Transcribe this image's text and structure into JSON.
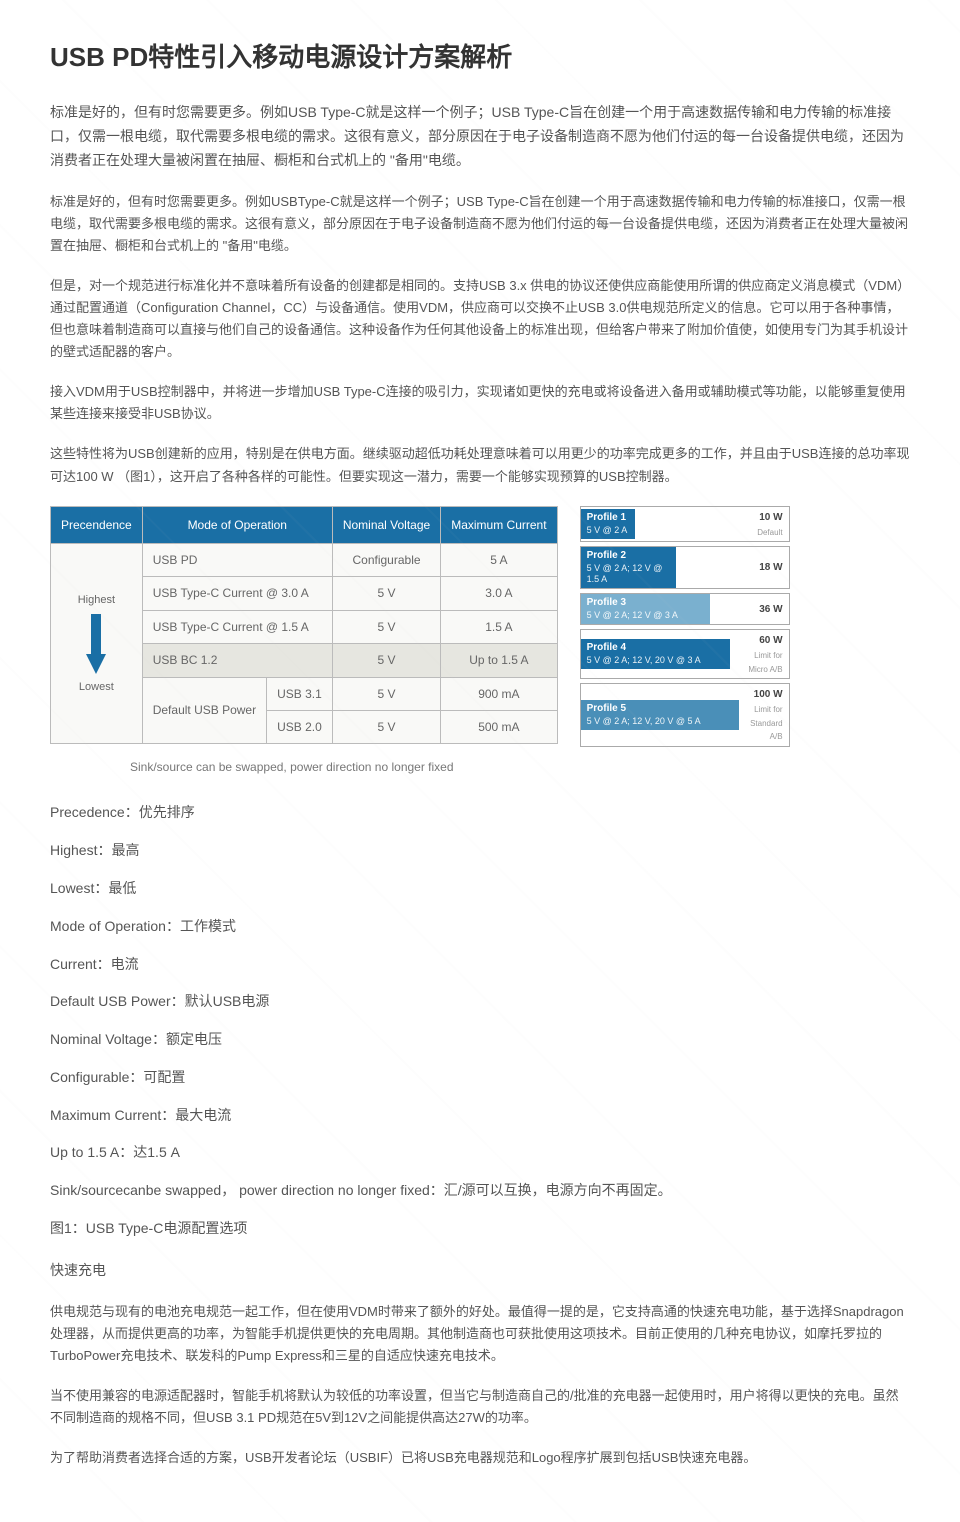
{
  "title": "USB PD特性引入移动电源设计方案解析",
  "paras": {
    "p1": "标准是好的，但有时您需要更多。例如USB Type-C就是这样一个例子；USB Type-C旨在创建一个用于高速数据传输和电力传输的标准接口，仅需一根电缆，取代需要多根电缆的需求。这很有意义，部分原因在于电子设备制造商不愿为他们付运的每一台设备提供电缆，还因为消费者正在处理大量被闲置在抽屉、橱柜和台式机上的 \"备用\"电缆。",
    "p2": "标准是好的，但有时您需要更多。例如USBType-C就是这样一个例子；USB Type-C旨在创建一个用于高速数据传输和电力传输的标准接口，仅需一根电缆，取代需要多根电缆的需求。这很有意义，部分原因在于电子设备制造商不愿为他们付运的每一台设备提供电缆，还因为消费者正在处理大量被闲置在抽屉、橱柜和台式机上的 \"备用\"电缆。",
    "p3": "但是，对一个规范进行标准化并不意味着所有设备的创建都是相同的。支持USB 3.x 供电的协议还使供应商能使用所谓的供应商定义消息模式（VDM）通过配置通道（Configuration Channel，CC）与设备通信。使用VDM，供应商可以交换不止USB 3.0供电规范所定义的信息。它可以用于各种事情，但也意味着制造商可以直接与他们自己的设备通信。这种设备作为任何其他设备上的标准出现，但给客户带来了附加价值使，如使用专门为其手机设计的壁式适配器的客户。",
    "p4": "接入VDM用于USB控制器中，并将进一步增加USB Type-C连接的吸引力，实现诸如更快的充电或将设备进入备用或辅助模式等功能，以能够重复使用某些连接来接受非USB协议。",
    "p5": "这些特性将为USB创建新的应用，特别是在供电方面。继续驱动超低功耗处理意味着可以用更少的功率完成更多的工作，并且由于USB连接的总功率现可达100 W （图1），这开启了各种各样的可能性。但要实现这一潜力，需要一个能够实现预算的USB控制器。"
  },
  "table": {
    "headers": {
      "precedence": "Precendence",
      "mode": "Mode of Operation",
      "voltage": "Nominal Voltage",
      "current": "Maximum Current"
    },
    "highest": "Highest",
    "lowest": "Lowest",
    "rows": {
      "r1": {
        "mode": "USB PD",
        "sub": "",
        "volt": "Configurable",
        "cur": "5 A"
      },
      "r2": {
        "mode": "USB Type-C Current @ 3.0 A",
        "sub": "",
        "volt": "5 V",
        "cur": "3.0 A"
      },
      "r3": {
        "mode": "USB Type-C Current @ 1.5 A",
        "sub": "",
        "volt": "5 V",
        "cur": "1.5 A"
      },
      "r4": {
        "mode": "USB BC 1.2",
        "sub": "",
        "volt": "5 V",
        "cur": "Up to 1.5 A"
      },
      "r5": {
        "mode": "Default USB Power",
        "sub": "USB 3.1",
        "volt": "5 V",
        "cur": "900 mA"
      },
      "r6": {
        "mode": "",
        "sub": "USB 2.0",
        "volt": "5 V",
        "cur": "500 mA"
      }
    }
  },
  "swap_note": "Sink/source can be swapped, power direction no longer fixed",
  "profiles": [
    {
      "name": "Profile 1",
      "spec": "5 V @ 2 A",
      "watt": "10 W",
      "note": "Default",
      "widthPct": 26,
      "bg": "#1a6fa5"
    },
    {
      "name": "Profile 2",
      "spec": "5 V @ 2 A; 12 V @ 1.5 A",
      "watt": "18 W",
      "note": "",
      "widthPct": 46,
      "bg": "#1a6fa5"
    },
    {
      "name": "Profile 3",
      "spec": "5 V @ 2 A; 12 V @ 3 A",
      "watt": "36 W",
      "note": "",
      "widthPct": 62,
      "bg": "#7ab0cf"
    },
    {
      "name": "Profile 4",
      "spec": "5 V @ 2 A; 12 V, 20 V @ 3 A",
      "watt": "60 W",
      "note": "Limit for Micro A/B",
      "widthPct": 72,
      "bg": "#1a6fa5"
    },
    {
      "name": "Profile 5",
      "spec": "5 V @ 2 A; 12 V, 20 V @ 5 A",
      "watt": "100 W",
      "note": "Limit for Standard A/B",
      "widthPct": 76,
      "bg": "#4a8fb8"
    }
  ],
  "defs": {
    "d1": "Precedence：优先排序",
    "d2": "Highest：最高",
    "d3": "Lowest：最低",
    "d4": "Mode of Operation：工作模式",
    "d5": "Current：电流",
    "d6": "Default USB Power：默认USB电源",
    "d7": "Nominal Voltage：额定电压",
    "d8": "Configurable：可配置",
    "d9": "Maximum Current：最大电流",
    "d10": "Up to 1.5 A：达1.5 A",
    "d11": "Sink/sourcecanbe swapped， power direction no longer fixed：汇/源可以互换，电源方向不再固定。"
  },
  "caption": "图1：USB Type-C电源配置选项",
  "section2_title": "快速充电",
  "paras2": {
    "p1": "供电规范与现有的电池充电规范一起工作，但在使用VDM时带来了额外的好处。最值得一提的是，它支持高通的快速充电功能，基于选择Snapdragon处理器，从而提供更高的功率，为智能手机提供更快的充电周期。其他制造商也可获批使用这项技术。目前正使用的几种充电协议，如摩托罗拉的TurboPower充电技术、联发科的Pump Express和三星的自适应快速充电技术。",
    "p2": "当不使用兼容的电源适配器时，智能手机将默认为较低的功率设置，但当它与制造商自己的/批准的充电器一起使用时，用户将得以更快的充电。虽然不同制造商的规格不同，但USB 3.1 PD规范在5V到12V之间能提供高达27W的功率。",
    "p3": "为了帮助消费者选择合适的方案，USB开发者论坛（USBIF）已将USB充电器规范和Logo程序扩展到包括USB快速充电器。"
  }
}
